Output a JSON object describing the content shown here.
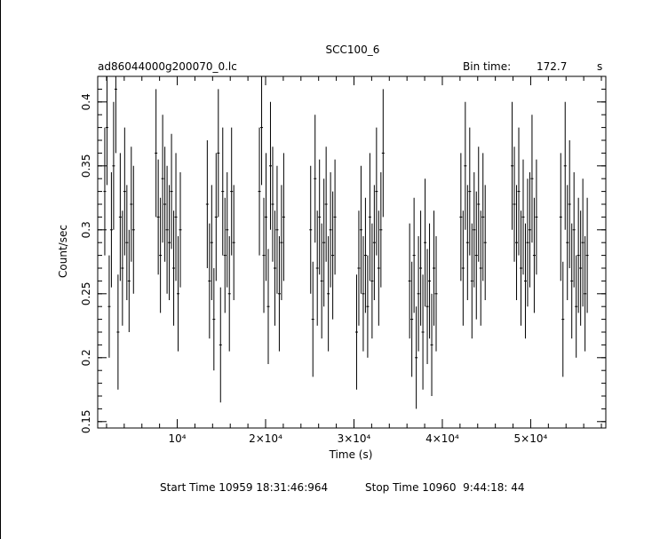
{
  "chart_data": {
    "type": "scatter",
    "title": "SCC100_6",
    "file_name": "ad86044000g200070_0.lc",
    "bin_time_label": "Bin time:",
    "bin_time_value": "172.7",
    "bin_time_unit": "s",
    "xlabel": "Time (s)",
    "ylabel": "Count/sec",
    "xlim": [
      1000,
      58500
    ],
    "ylim": [
      0.145,
      0.42
    ],
    "x_ticks": [
      {
        "value": 10000,
        "label": "10⁴"
      },
      {
        "value": 20000,
        "label": "2×10⁴"
      },
      {
        "value": 30000,
        "label": "3×10⁴"
      },
      {
        "value": 40000,
        "label": "4×10⁴"
      },
      {
        "value": 50000,
        "label": "5×10⁴"
      }
    ],
    "y_ticks": [
      {
        "value": 0.15,
        "label": "0.15"
      },
      {
        "value": 0.2,
        "label": "0.2"
      },
      {
        "value": 0.25,
        "label": "0.25"
      },
      {
        "value": 0.3,
        "label": "0.3"
      },
      {
        "value": 0.35,
        "label": "0.35"
      },
      {
        "value": 0.4,
        "label": "0.4"
      }
    ],
    "error_bars": "vertical",
    "series": [
      {
        "points": [
          [
            1800,
            0.33,
            0.05
          ],
          [
            2050,
            0.38,
            0.045
          ],
          [
            2300,
            0.24,
            0.04
          ],
          [
            2550,
            0.3,
            0.045
          ],
          [
            2800,
            0.35,
            0.05
          ],
          [
            3050,
            0.41,
            0.05
          ],
          [
            3300,
            0.22,
            0.045
          ],
          [
            3550,
            0.31,
            0.05
          ],
          [
            3800,
            0.27,
            0.045
          ],
          [
            4050,
            0.33,
            0.05
          ],
          [
            4300,
            0.29,
            0.045
          ],
          [
            4550,
            0.26,
            0.04
          ],
          [
            4800,
            0.32,
            0.045
          ],
          [
            5050,
            0.3,
            0.05
          ],
          [
            7600,
            0.36,
            0.05
          ],
          [
            7850,
            0.31,
            0.045
          ],
          [
            8100,
            0.28,
            0.045
          ],
          [
            8350,
            0.34,
            0.05
          ],
          [
            8600,
            0.32,
            0.045
          ],
          [
            8850,
            0.3,
            0.05
          ],
          [
            9100,
            0.29,
            0.045
          ],
          [
            9350,
            0.33,
            0.045
          ],
          [
            9600,
            0.27,
            0.045
          ],
          [
            9850,
            0.31,
            0.05
          ],
          [
            10100,
            0.25,
            0.045
          ],
          [
            10350,
            0.3,
            0.045
          ],
          [
            13400,
            0.32,
            0.05
          ],
          [
            13650,
            0.26,
            0.045
          ],
          [
            13900,
            0.29,
            0.045
          ],
          [
            14150,
            0.23,
            0.04
          ],
          [
            14400,
            0.31,
            0.05
          ],
          [
            14650,
            0.36,
            0.05
          ],
          [
            14900,
            0.21,
            0.045
          ],
          [
            15150,
            0.33,
            0.05
          ],
          [
            15400,
            0.28,
            0.045
          ],
          [
            15650,
            0.3,
            0.045
          ],
          [
            15900,
            0.25,
            0.045
          ],
          [
            16150,
            0.33,
            0.05
          ],
          [
            16400,
            0.29,
            0.045
          ],
          [
            19300,
            0.33,
            0.05
          ],
          [
            19550,
            0.38,
            0.045
          ],
          [
            19800,
            0.28,
            0.045
          ],
          [
            20050,
            0.31,
            0.05
          ],
          [
            20300,
            0.24,
            0.045
          ],
          [
            20550,
            0.35,
            0.05
          ],
          [
            20800,
            0.32,
            0.045
          ],
          [
            21050,
            0.27,
            0.045
          ],
          [
            21300,
            0.3,
            0.05
          ],
          [
            21550,
            0.25,
            0.045
          ],
          [
            21800,
            0.29,
            0.045
          ],
          [
            22050,
            0.31,
            0.05
          ],
          [
            25100,
            0.3,
            0.05
          ],
          [
            25350,
            0.23,
            0.045
          ],
          [
            25600,
            0.34,
            0.05
          ],
          [
            25850,
            0.27,
            0.045
          ],
          [
            26100,
            0.31,
            0.045
          ],
          [
            26350,
            0.26,
            0.045
          ],
          [
            26600,
            0.29,
            0.05
          ],
          [
            26850,
            0.32,
            0.045
          ],
          [
            27100,
            0.25,
            0.045
          ],
          [
            27350,
            0.3,
            0.045
          ],
          [
            27600,
            0.28,
            0.05
          ],
          [
            27850,
            0.31,
            0.045
          ],
          [
            30300,
            0.22,
            0.045
          ],
          [
            30550,
            0.27,
            0.045
          ],
          [
            30800,
            0.3,
            0.05
          ],
          [
            31050,
            0.25,
            0.045
          ],
          [
            31300,
            0.28,
            0.045
          ],
          [
            31550,
            0.24,
            0.04
          ],
          [
            31800,
            0.31,
            0.05
          ],
          [
            32050,
            0.26,
            0.045
          ],
          [
            32300,
            0.29,
            0.045
          ],
          [
            32550,
            0.33,
            0.05
          ],
          [
            32800,
            0.27,
            0.045
          ],
          [
            33050,
            0.3,
            0.045
          ],
          [
            33300,
            0.36,
            0.05
          ],
          [
            36300,
            0.26,
            0.045
          ],
          [
            36550,
            0.23,
            0.045
          ],
          [
            36800,
            0.28,
            0.045
          ],
          [
            37050,
            0.2,
            0.04
          ],
          [
            37300,
            0.25,
            0.045
          ],
          [
            37550,
            0.27,
            0.045
          ],
          [
            37800,
            0.22,
            0.045
          ],
          [
            38050,
            0.29,
            0.05
          ],
          [
            38300,
            0.24,
            0.045
          ],
          [
            38550,
            0.26,
            0.045
          ],
          [
            38800,
            0.21,
            0.04
          ],
          [
            39050,
            0.27,
            0.045
          ],
          [
            39300,
            0.25,
            0.045
          ],
          [
            42100,
            0.31,
            0.05
          ],
          [
            42350,
            0.27,
            0.045
          ],
          [
            42600,
            0.35,
            0.05
          ],
          [
            42850,
            0.29,
            0.045
          ],
          [
            43100,
            0.33,
            0.05
          ],
          [
            43350,
            0.26,
            0.045
          ],
          [
            43600,
            0.3,
            0.045
          ],
          [
            43850,
            0.28,
            0.05
          ],
          [
            44100,
            0.32,
            0.045
          ],
          [
            44350,
            0.27,
            0.045
          ],
          [
            44600,
            0.31,
            0.05
          ],
          [
            44850,
            0.29,
            0.045
          ],
          [
            47900,
            0.35,
            0.05
          ],
          [
            48150,
            0.32,
            0.045
          ],
          [
            48400,
            0.29,
            0.045
          ],
          [
            48650,
            0.33,
            0.05
          ],
          [
            48900,
            0.27,
            0.045
          ],
          [
            49150,
            0.31,
            0.045
          ],
          [
            49400,
            0.26,
            0.045
          ],
          [
            49650,
            0.29,
            0.05
          ],
          [
            49900,
            0.3,
            0.045
          ],
          [
            50150,
            0.34,
            0.05
          ],
          [
            50400,
            0.28,
            0.045
          ],
          [
            50650,
            0.31,
            0.045
          ],
          [
            53400,
            0.31,
            0.05
          ],
          [
            53650,
            0.23,
            0.045
          ],
          [
            53900,
            0.35,
            0.05
          ],
          [
            54150,
            0.29,
            0.045
          ],
          [
            54400,
            0.32,
            0.05
          ],
          [
            54650,
            0.26,
            0.045
          ],
          [
            54900,
            0.3,
            0.045
          ],
          [
            55150,
            0.24,
            0.04
          ],
          [
            55400,
            0.28,
            0.045
          ],
          [
            55650,
            0.27,
            0.045
          ],
          [
            55900,
            0.29,
            0.05
          ],
          [
            56150,
            0.25,
            0.045
          ],
          [
            56400,
            0.28,
            0.045
          ]
        ]
      }
    ]
  },
  "footer": {
    "start_time": "Start Time 10959 18:31:46:964",
    "stop_time": "Stop Time 10960  9:44:18: 44"
  }
}
